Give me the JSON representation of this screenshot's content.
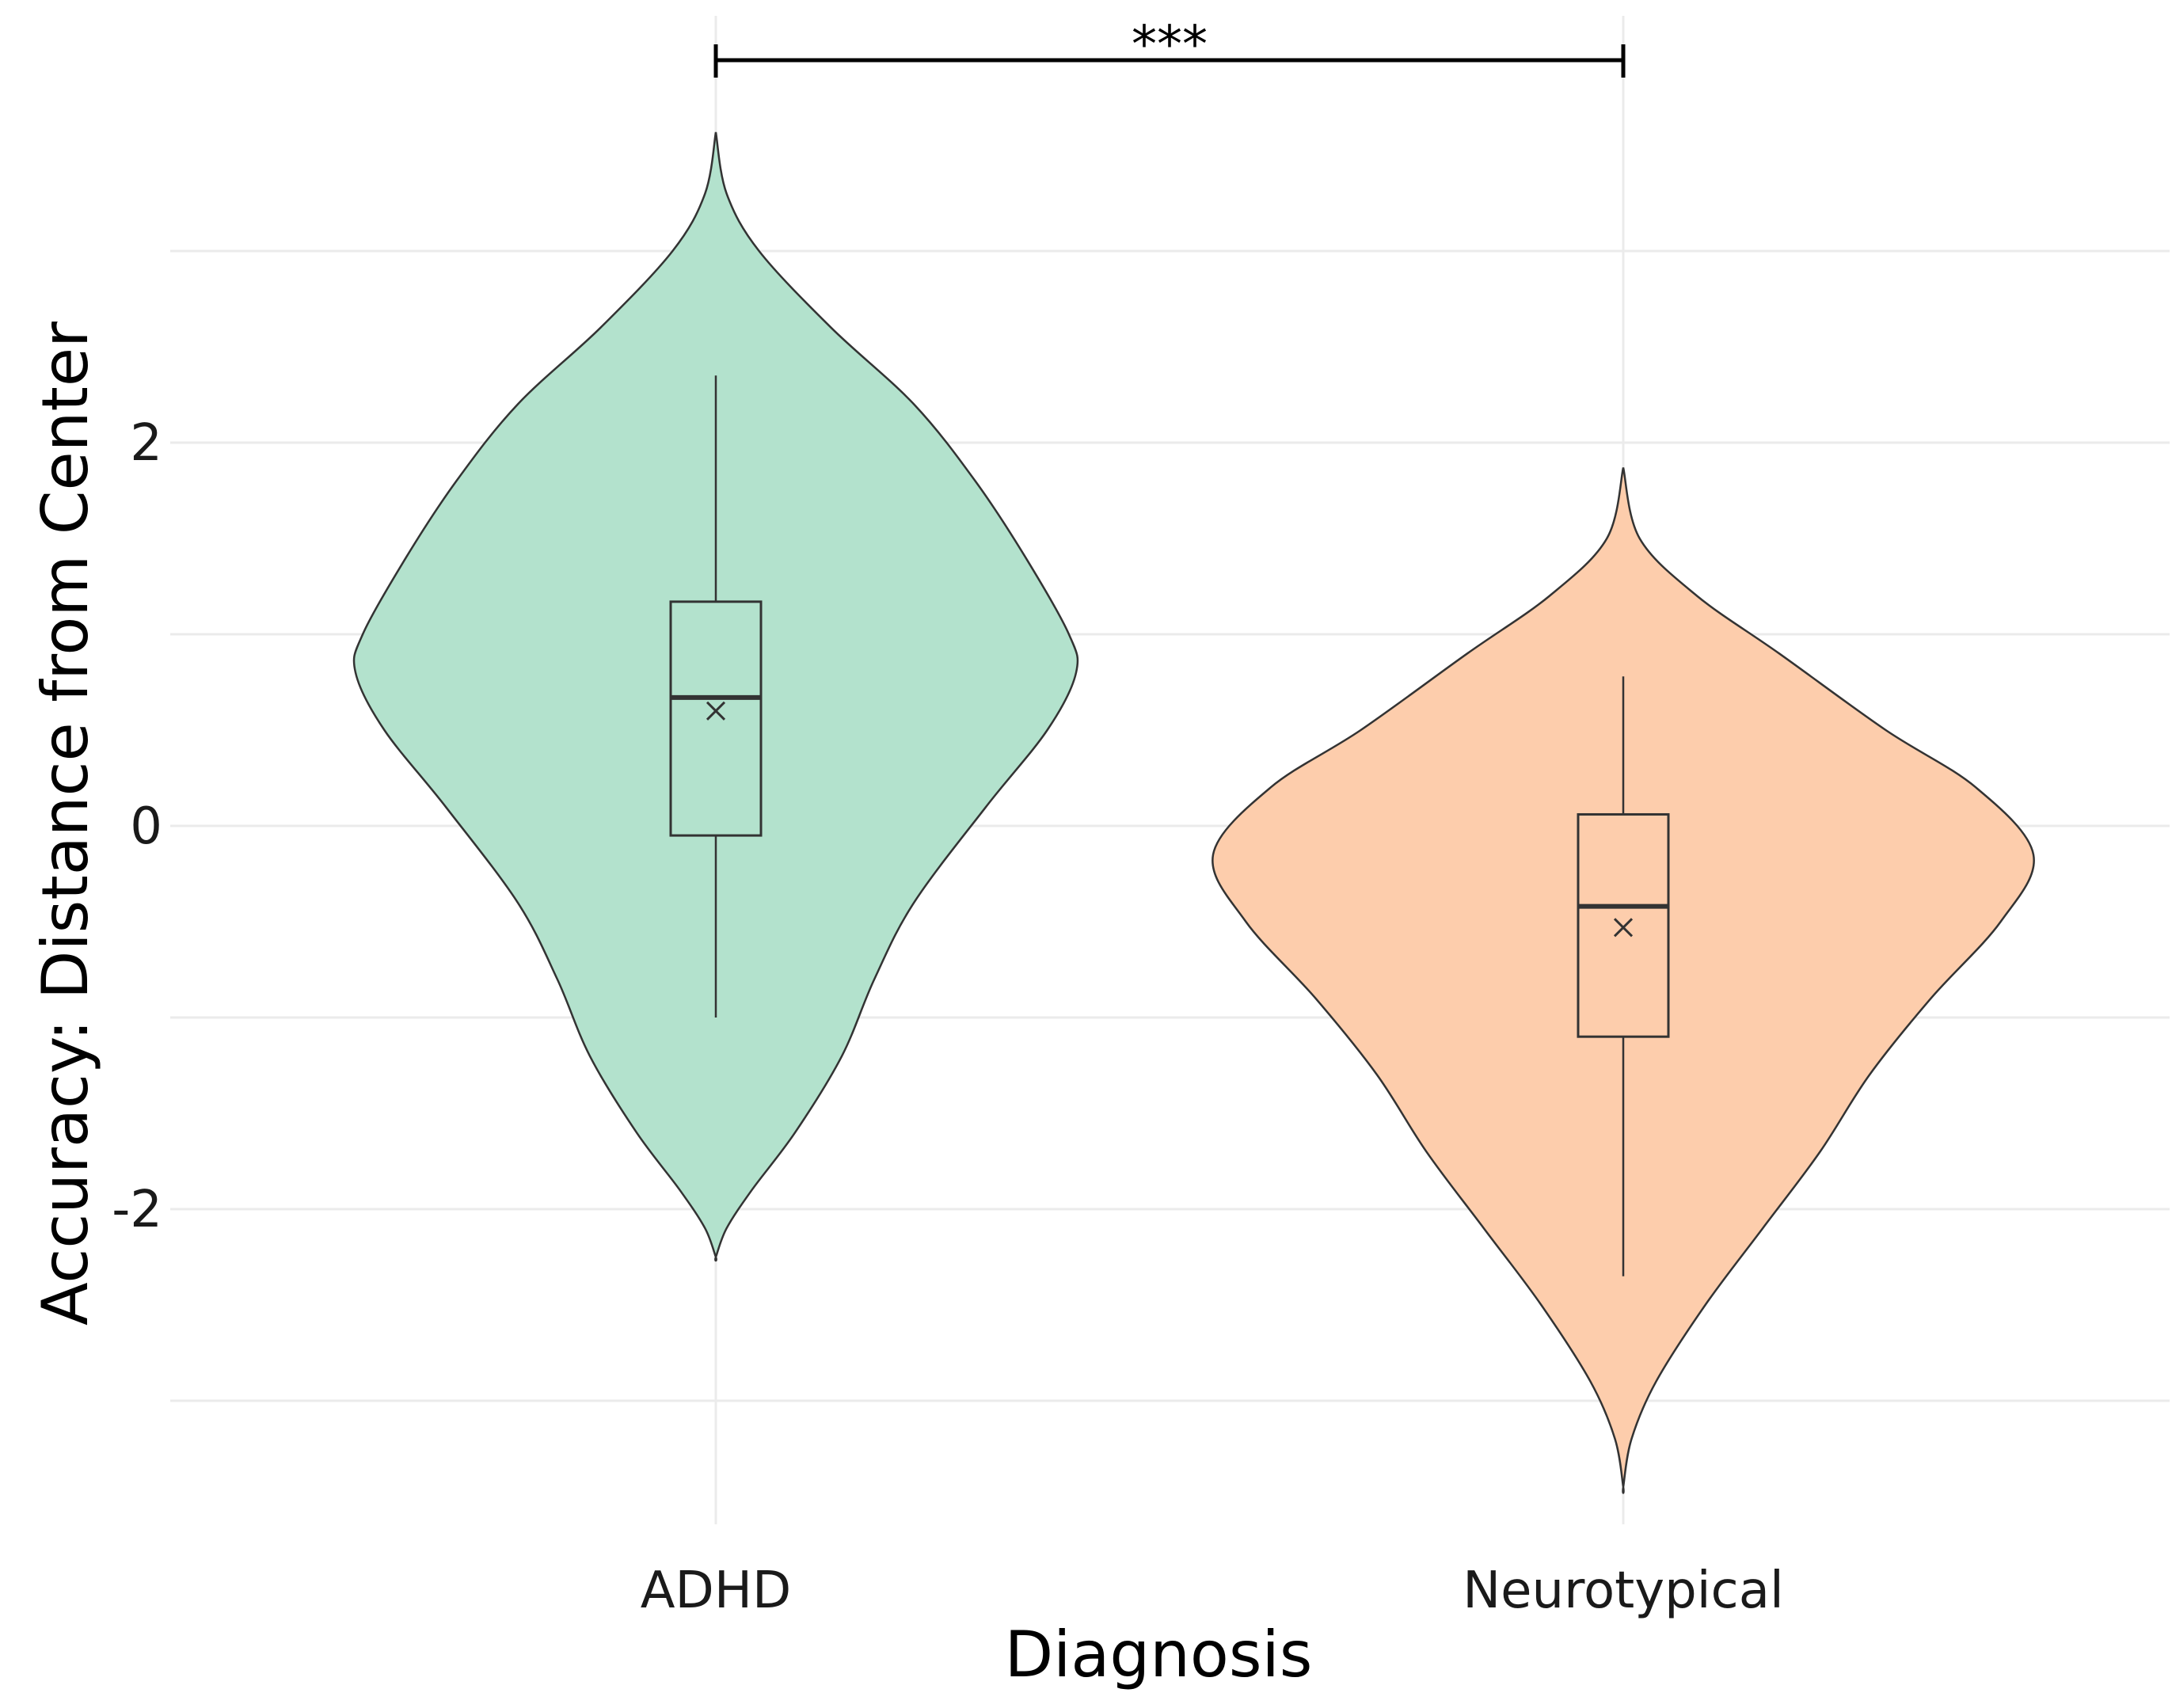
{
  "chart_data": {
    "type": "violin",
    "xlabel": "Diagnosis",
    "ylabel": "Accuracy: Distance from Center",
    "categories": [
      "ADHD",
      "Neurotypical"
    ],
    "ylim": [
      -3.7,
      4.3
    ],
    "yticks": [
      -2,
      0,
      2
    ],
    "ytick_labels": [
      "-2",
      "0",
      "2"
    ],
    "y_minor_gridlines": [
      -3,
      -1,
      1,
      3
    ],
    "grid": true,
    "groups": [
      {
        "name": "ADHD",
        "color": "#b3e2cd",
        "violin_min": -2.25,
        "violin_max": 3.62,
        "density": [
          [
            3.62,
            0.0
          ],
          [
            3.3,
            0.03
          ],
          [
            3.0,
            0.12
          ],
          [
            2.6,
            0.32
          ],
          [
            2.2,
            0.55
          ],
          [
            1.8,
            0.72
          ],
          [
            1.4,
            0.86
          ],
          [
            1.0,
            0.98
          ],
          [
            0.8,
            1.0
          ],
          [
            0.5,
            0.92
          ],
          [
            0.1,
            0.75
          ],
          [
            -0.4,
            0.55
          ],
          [
            -0.8,
            0.44
          ],
          [
            -1.2,
            0.35
          ],
          [
            -1.6,
            0.22
          ],
          [
            -1.9,
            0.1
          ],
          [
            -2.1,
            0.03
          ],
          [
            -2.25,
            0.0
          ]
        ],
        "whisker_low": -1.0,
        "q1": -0.05,
        "median": 0.67,
        "q3": 1.17,
        "whisker_high": 2.35,
        "mean": 0.6
      },
      {
        "name": "Neurotypical",
        "color": "#fdcdac",
        "violin_min": -3.45,
        "violin_max": 1.87,
        "density": [
          [
            1.87,
            0.0
          ],
          [
            1.5,
            0.04
          ],
          [
            1.2,
            0.18
          ],
          [
            0.9,
            0.38
          ],
          [
            0.5,
            0.64
          ],
          [
            0.2,
            0.86
          ],
          [
            -0.15,
            1.0
          ],
          [
            -0.5,
            0.92
          ],
          [
            -0.9,
            0.75
          ],
          [
            -1.3,
            0.6
          ],
          [
            -1.7,
            0.48
          ],
          [
            -2.1,
            0.34
          ],
          [
            -2.5,
            0.2
          ],
          [
            -2.9,
            0.08
          ],
          [
            -3.2,
            0.02
          ],
          [
            -3.45,
            0.0
          ]
        ],
        "whisker_low": -2.35,
        "q1": -1.1,
        "median": -0.42,
        "q3": 0.06,
        "whisker_high": 0.78,
        "mean": -0.53
      }
    ],
    "significance": {
      "from": "ADHD",
      "to": "Neurotypical",
      "label": "***"
    }
  }
}
